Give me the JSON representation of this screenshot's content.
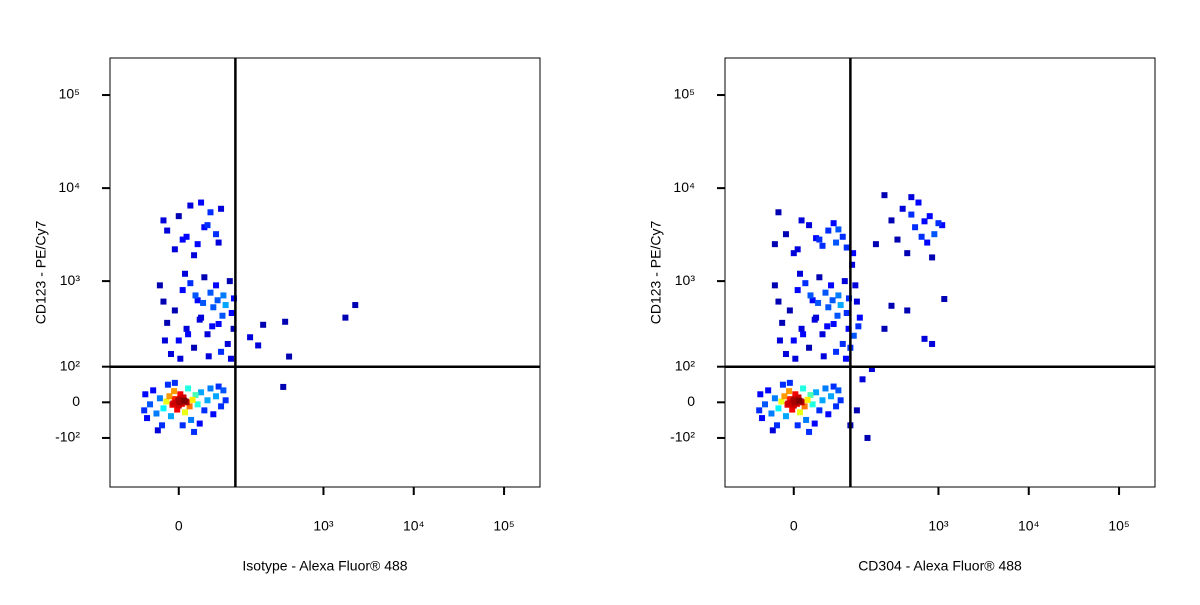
{
  "chart_data": [
    {
      "type": "scatter",
      "x_label": "Isotype - Alexa Fluor® 488",
      "y_label": "CD123 - PE/Cy7",
      "xscale": "arcsinh",
      "yscale": "arcsinh",
      "xlim": [
        -140,
        250000
      ],
      "ylim": [
        -400,
        250000
      ],
      "xticks": [
        0,
        {
          "value": 1000,
          "label": "10³"
        },
        {
          "value": 10000,
          "label": "10⁴"
        },
        {
          "value": 100000,
          "label": "10⁵"
        }
      ],
      "yticks": [
        {
          "value": -100,
          "label": "-10²"
        },
        0,
        {
          "value": 100,
          "label": "10²"
        },
        {
          "value": 1000,
          "label": "10³"
        },
        {
          "value": 10000,
          "label": "10⁴"
        },
        {
          "value": 100000,
          "label": "10⁵"
        }
      ],
      "quadrant_gate": {
        "x": 100,
        "y": 100
      },
      "x": [
        0,
        3,
        -4,
        6,
        -8,
        10,
        -12,
        14,
        2,
        -2,
        18,
        -16,
        8,
        -6,
        22,
        -20,
        25,
        -25,
        12,
        -10,
        30,
        -30,
        35,
        -35,
        40,
        -40,
        16,
        -14,
        45,
        -45,
        50,
        55,
        -48,
        60,
        5,
        -5,
        28,
        -22,
        65,
        70,
        20,
        -28,
        75,
        -50,
        1,
        -1,
        4,
        -3,
        7,
        -7,
        2,
        -5,
        9,
        0,
        -10,
        0,
        10,
        20,
        30,
        40,
        50,
        60,
        70,
        80,
        90,
        -20,
        -15,
        5,
        15,
        25,
        35,
        45,
        55,
        65,
        75,
        85,
        95,
        -5,
        12,
        28,
        42,
        58,
        -18,
        8,
        33,
        48,
        68,
        88,
        22,
        -25,
        96,
        2,
        -5,
        10,
        25,
        40,
        55,
        0,
        15,
        30,
        -15,
        45,
        60,
        20,
        -20,
        65,
        5,
        35,
        212,
        375,
        1750,
        2250,
        415,
        357,
        150,
        186
      ],
      "y": [
        5,
        -2,
        8,
        12,
        -6,
        0,
        15,
        -10,
        20,
        -18,
        6,
        2,
        -25,
        28,
        18,
        -15,
        -5,
        10,
        35,
        -35,
        25,
        -28,
        -20,
        30,
        5,
        -5,
        -45,
        45,
        35,
        -40,
        -30,
        15,
        20,
        40,
        -60,
        50,
        -55,
        -60,
        -10,
        30,
        -80,
        -75,
        5,
        -20,
        0,
        3,
        -4,
        -1,
        4,
        -3,
        9,
        6,
        2,
        -8,
        150,
        220,
        300,
        180,
        400,
        260,
        520,
        340,
        700,
        200,
        450,
        600,
        350,
        800,
        950,
        620,
        1100,
        750,
        900,
        160,
        550,
        1000,
        300,
        480,
        260,
        380,
        140,
        620,
        220,
        1200,
        580,
        320,
        420,
        130,
        700,
        900,
        650,
        130,
        2200,
        3000,
        2500,
        4000,
        3200,
        5000,
        6500,
        7000,
        3500,
        5500,
        2600,
        1900,
        4500,
        6000,
        2800,
        3800,
        333,
        360,
        400,
        550,
        139,
        39,
        240,
        192
      ]
    },
    {
      "type": "scatter",
      "x_label": "CD304 - Alexa Fluor® 488",
      "y_label": "CD123 - PE/Cy7",
      "xscale": "arcsinh",
      "yscale": "arcsinh",
      "xlim": [
        -140,
        250000
      ],
      "ylim": [
        -400,
        250000
      ],
      "xticks": [
        0,
        {
          "value": 1000,
          "label": "10³"
        },
        {
          "value": 10000,
          "label": "10⁴"
        },
        {
          "value": 100000,
          "label": "10⁵"
        }
      ],
      "yticks": [
        {
          "value": -100,
          "label": "-10²"
        },
        0,
        {
          "value": 100,
          "label": "10²"
        },
        {
          "value": 1000,
          "label": "10³"
        },
        {
          "value": 10000,
          "label": "10⁴"
        },
        {
          "value": 100000,
          "label": "10⁵"
        }
      ],
      "quadrant_gate": {
        "x": 100,
        "y": 100
      },
      "x": [
        0,
        3,
        -4,
        6,
        -8,
        10,
        -12,
        14,
        2,
        -2,
        18,
        -16,
        8,
        -6,
        22,
        -20,
        25,
        -25,
        12,
        -10,
        30,
        -30,
        35,
        -35,
        40,
        -40,
        16,
        -14,
        45,
        -45,
        50,
        55,
        -48,
        60,
        5,
        -5,
        28,
        -22,
        65,
        70,
        20,
        -28,
        75,
        -50,
        1,
        -1,
        4,
        -3,
        7,
        -7,
        2,
        -5,
        9,
        0,
        -10,
        0,
        10,
        20,
        30,
        40,
        50,
        60,
        70,
        80,
        90,
        -20,
        -15,
        5,
        15,
        25,
        35,
        45,
        55,
        65,
        75,
        85,
        95,
        -5,
        12,
        28,
        42,
        58,
        -18,
        8,
        33,
        48,
        68,
        88,
        22,
        -25,
        96,
        2,
        110,
        120,
        105,
        130,
        115,
        100,
        125,
        108,
        -25,
        -10,
        5,
        20,
        35,
        50,
        65,
        80,
        -20,
        10,
        40,
        70,
        0,
        30,
        60,
        90,
        250,
        400,
        500,
        600,
        700,
        800,
        1000,
        900,
        550,
        350,
        450,
        750,
        300,
        650,
        1100,
        500,
        200,
        850,
        1160,
        700,
        850,
        300,
        450,
        250,
        180,
        140,
        120,
        160,
        100
      ],
      "y": [
        5,
        -2,
        8,
        12,
        -6,
        0,
        15,
        -10,
        20,
        -18,
        6,
        2,
        -25,
        28,
        18,
        -15,
        -5,
        10,
        35,
        -35,
        25,
        -28,
        -20,
        30,
        5,
        -5,
        -45,
        45,
        35,
        -40,
        -30,
        15,
        20,
        40,
        -60,
        50,
        -55,
        -60,
        -10,
        30,
        -80,
        -75,
        5,
        -20,
        0,
        3,
        -4,
        -1,
        4,
        -3,
        9,
        6,
        2,
        -8,
        150,
        220,
        300,
        180,
        400,
        260,
        520,
        340,
        700,
        200,
        450,
        600,
        350,
        800,
        950,
        620,
        1100,
        750,
        900,
        160,
        550,
        1000,
        300,
        480,
        260,
        380,
        140,
        620,
        220,
        1200,
        580,
        320,
        420,
        130,
        700,
        900,
        650,
        130,
        250,
        600,
        1500,
        400,
        900,
        180,
        320,
        2000,
        2500,
        3200,
        2200,
        4000,
        2800,
        3500,
        2600,
        3000,
        5500,
        4500,
        2400,
        3600,
        2000,
        2900,
        4200,
        2300,
        8400,
        6000,
        5200,
        7000,
        4400,
        5000,
        4200,
        3200,
        3800,
        2800,
        2000,
        2600,
        4500,
        3000,
        4000,
        8000,
        2500,
        1800,
        640,
        230,
        200,
        540,
        480,
        300,
        92,
        60,
        -20,
        -100,
        -60
      ]
    }
  ]
}
